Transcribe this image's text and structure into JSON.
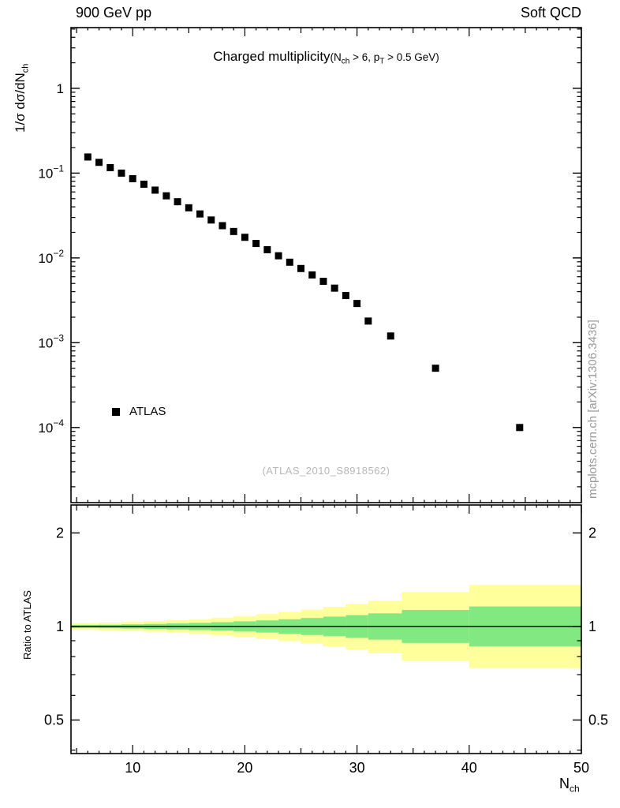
{
  "header": {
    "left": "900 GeV pp",
    "right": "Soft QCD"
  },
  "title": {
    "main": "Charged multiplicity",
    "paren_parts": [
      "(N",
      "ch",
      " > 6, p",
      "T",
      " > 0.5 GeV)"
    ]
  },
  "ylabel": {
    "parts": [
      "1/σ dσ/dN",
      "ch"
    ]
  },
  "xlabel": {
    "parts": [
      "N",
      "ch"
    ]
  },
  "watermark": "(ATLAS_2010_S8918562)",
  "side_label": "mcplots.cern.ch [arXiv:1306.3436]",
  "chart_data": {
    "type": "scatter",
    "title": "Charged multiplicity (N_ch > 6, p_T > 0.5 GeV)",
    "xlabel": "N_ch",
    "xlim": [
      4.5,
      50
    ],
    "x_ticks": [
      10,
      20,
      30,
      40,
      50
    ],
    "top_panel": {
      "ylabel": "1/σ dσ/dN_ch",
      "yscale": "log",
      "ylim": [
        1.3e-05,
        5.2
      ],
      "yticks_exp": [
        0,
        -1,
        -2,
        -3,
        -4
      ],
      "series": [
        {
          "name": "ATLAS",
          "marker": "square",
          "color": "#000000",
          "x": [
            6,
            7,
            8,
            9,
            10,
            11,
            12,
            13,
            14,
            15,
            16,
            17,
            18,
            19,
            20,
            21,
            22,
            23,
            24,
            25,
            26,
            27,
            28,
            29,
            30,
            31,
            33,
            37,
            44.5
          ],
          "y": [
            0.155,
            0.134,
            0.116,
            0.1,
            0.086,
            0.074,
            0.063,
            0.054,
            0.046,
            0.039,
            0.033,
            0.028,
            0.024,
            0.0205,
            0.0175,
            0.0148,
            0.0125,
            0.0106,
            0.0089,
            0.0075,
            0.0063,
            0.0053,
            0.0044,
            0.0036,
            0.0029,
            0.0018,
            0.0012,
            0.0005,
            0.0001
          ]
        }
      ]
    },
    "ratio_panel": {
      "ylabel": "Ratio to ATLAS",
      "yscale": "log",
      "ylim": [
        0.39,
        2.46
      ],
      "yticks": [
        0.5,
        1,
        2
      ],
      "yticks_minor": [
        0.4,
        0.6,
        0.7,
        0.8,
        0.9
      ],
      "reference_line": 1,
      "band_colors": {
        "outer": "#ffff9b",
        "inner": "#82e882"
      },
      "bands": [
        {
          "x0": 4.5,
          "x1": 7,
          "outer": [
            0.975,
            1.026
          ],
          "inner": [
            0.989,
            1.011
          ]
        },
        {
          "x0": 7,
          "x1": 9,
          "outer": [
            0.971,
            1.03
          ],
          "inner": [
            0.987,
            1.013
          ]
        },
        {
          "x0": 9,
          "x1": 11,
          "outer": [
            0.967,
            1.034
          ],
          "inner": [
            0.985,
            1.016
          ]
        },
        {
          "x0": 11,
          "x1": 13,
          "outer": [
            0.962,
            1.04
          ],
          "inner": [
            0.982,
            1.019
          ]
        },
        {
          "x0": 13,
          "x1": 15,
          "outer": [
            0.955,
            1.047
          ],
          "inner": [
            0.978,
            1.023
          ]
        },
        {
          "x0": 15,
          "x1": 17,
          "outer": [
            0.947,
            1.056
          ],
          "inner": [
            0.974,
            1.027
          ]
        },
        {
          "x0": 17,
          "x1": 19,
          "outer": [
            0.937,
            1.067
          ],
          "inner": [
            0.969,
            1.032
          ]
        },
        {
          "x0": 19,
          "x1": 21,
          "outer": [
            0.926,
            1.08
          ],
          "inner": [
            0.963,
            1.039
          ]
        },
        {
          "x0": 21,
          "x1": 23,
          "outer": [
            0.913,
            1.096
          ],
          "inner": [
            0.956,
            1.046
          ]
        },
        {
          "x0": 23,
          "x1": 25,
          "outer": [
            0.898,
            1.113
          ],
          "inner": [
            0.948,
            1.055
          ]
        },
        {
          "x0": 25,
          "x1": 27,
          "outer": [
            0.881,
            1.133
          ],
          "inner": [
            0.939,
            1.065
          ]
        },
        {
          "x0": 27,
          "x1": 29,
          "outer": [
            0.863,
            1.156
          ],
          "inner": [
            0.93,
            1.076
          ]
        },
        {
          "x0": 29,
          "x1": 31,
          "outer": [
            0.843,
            1.181
          ],
          "inner": [
            0.919,
            1.088
          ]
        },
        {
          "x0": 31,
          "x1": 34,
          "outer": [
            0.82,
            1.21
          ],
          "inner": [
            0.907,
            1.102
          ]
        },
        {
          "x0": 34,
          "x1": 40,
          "outer": [
            0.775,
            1.29
          ],
          "inner": [
            0.885,
            1.13
          ]
        },
        {
          "x0": 40,
          "x1": 50,
          "outer": [
            0.735,
            1.36
          ],
          "inner": [
            0.862,
            1.16
          ]
        }
      ]
    }
  }
}
